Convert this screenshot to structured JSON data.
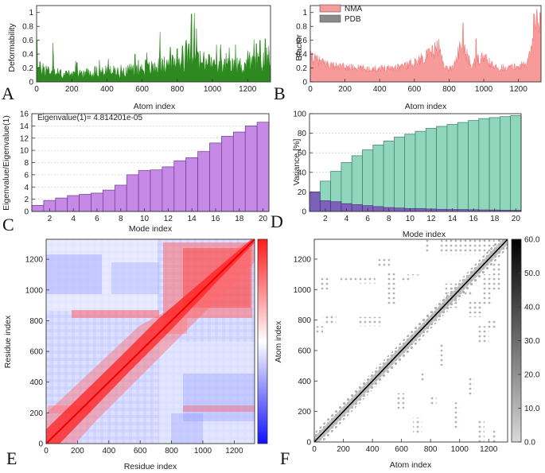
{
  "figure": {
    "panels": [
      "A",
      "B",
      "C",
      "D",
      "E",
      "F"
    ]
  },
  "colors": {
    "deform": "#2c8a1e",
    "nma": "#f79a9a",
    "pdb": "#8a8a8a",
    "eigen": "#c68ae6",
    "variance": "#8fd6bd",
    "variance_ind": "#7a55b8",
    "frame": "#333333",
    "grid": "#bdbdbd"
  },
  "chart_data": [
    {
      "id": "A",
      "type": "area",
      "title": "",
      "xlabel": "Atom index",
      "ylabel": "Deformability",
      "xlim": [
        0,
        1330
      ],
      "ylim": [
        0,
        1.1
      ],
      "xticks": [
        "0",
        "200",
        "400",
        "600",
        "800",
        "1000",
        "1200"
      ],
      "yticks": [
        "0",
        "0.2",
        "0.4",
        "0.6",
        "0.8",
        "1"
      ],
      "profile": [
        [
          0,
          0.2
        ],
        [
          40,
          0.22
        ],
        [
          100,
          0.15
        ],
        [
          160,
          0.12
        ],
        [
          220,
          0.13
        ],
        [
          300,
          0.15
        ],
        [
          380,
          0.16
        ],
        [
          460,
          0.17
        ],
        [
          540,
          0.18
        ],
        [
          620,
          0.2
        ],
        [
          700,
          0.24
        ],
        [
          760,
          0.28
        ],
        [
          820,
          0.3
        ],
        [
          860,
          0.42
        ],
        [
          880,
          0.55
        ],
        [
          900,
          0.35
        ],
        [
          960,
          0.3
        ],
        [
          1020,
          0.25
        ],
        [
          1100,
          0.24
        ],
        [
          1180,
          0.26
        ],
        [
          1240,
          0.3
        ],
        [
          1280,
          0.32
        ],
        [
          1300,
          0.3
        ],
        [
          1330,
          0.28
        ]
      ],
      "peaks": [
        [
          2,
          0.6
        ],
        [
          95,
          0.35
        ],
        [
          230,
          0.28
        ],
        [
          560,
          0.4
        ],
        [
          620,
          0.32
        ],
        [
          700,
          0.45
        ],
        [
          760,
          0.5
        ],
        [
          800,
          0.48
        ],
        [
          830,
          0.52
        ],
        [
          850,
          0.6
        ],
        [
          865,
          0.55
        ],
        [
          880,
          0.98
        ],
        [
          895,
          0.62
        ],
        [
          910,
          0.48
        ],
        [
          980,
          0.4
        ],
        [
          1070,
          0.33
        ],
        [
          1200,
          0.45
        ],
        [
          1250,
          0.55
        ],
        [
          1270,
          0.6
        ],
        [
          1300,
          0.62
        ],
        [
          1320,
          0.52
        ]
      ]
    },
    {
      "id": "B",
      "type": "area",
      "title": "",
      "xlabel": "Atom index",
      "ylabel": "Bfactor",
      "xlim": [
        0,
        1330
      ],
      "ylim": [
        0,
        1.1
      ],
      "xticks": [
        "0",
        "200",
        "400",
        "600",
        "800",
        "1000",
        "1200"
      ],
      "yticks": [
        "0",
        "0.2",
        "0.4",
        "0.6",
        "0.8",
        "1"
      ],
      "legend": [
        "NMA",
        "PDB"
      ],
      "legend_position": "top-left",
      "profile": [
        [
          0,
          0.35
        ],
        [
          60,
          0.28
        ],
        [
          150,
          0.22
        ],
        [
          250,
          0.2
        ],
        [
          350,
          0.18
        ],
        [
          450,
          0.2
        ],
        [
          550,
          0.23
        ],
        [
          620,
          0.3
        ],
        [
          680,
          0.38
        ],
        [
          720,
          0.45
        ],
        [
          740,
          0.5
        ],
        [
          760,
          0.3
        ],
        [
          790,
          0.18
        ],
        [
          820,
          0.2
        ],
        [
          860,
          0.45
        ],
        [
          880,
          0.55
        ],
        [
          900,
          0.38
        ],
        [
          930,
          0.22
        ],
        [
          960,
          0.3
        ],
        [
          1000,
          0.35
        ],
        [
          1060,
          0.2
        ],
        [
          1140,
          0.2
        ],
        [
          1200,
          0.22
        ],
        [
          1250,
          0.25
        ],
        [
          1280,
          0.6
        ],
        [
          1300,
          0.9
        ],
        [
          1320,
          0.7
        ],
        [
          1330,
          0.72
        ]
      ],
      "peaks": [
        [
          10,
          0.42
        ],
        [
          880,
          0.85
        ],
        [
          955,
          0.62
        ],
        [
          1010,
          0.38
        ],
        [
          1290,
          0.98
        ],
        [
          1312,
          0.85
        ],
        [
          1325,
          1.0
        ]
      ]
    },
    {
      "id": "C",
      "type": "bar",
      "title": "",
      "annotation": "Eigenvalue(1)= 4.814201e-05",
      "xlabel": "Mode index",
      "ylabel": "Eigenvalue/Eigenvalue(1)",
      "xlim": [
        0.5,
        20.5
      ],
      "ylim": [
        0,
        16
      ],
      "xticks": [
        "2",
        "4",
        "6",
        "8",
        "10",
        "12",
        "14",
        "16",
        "18",
        "20"
      ],
      "yticks": [
        "0",
        "2",
        "4",
        "6",
        "8",
        "10",
        "12",
        "14",
        "16"
      ],
      "categories": [
        1,
        2,
        3,
        4,
        5,
        6,
        7,
        8,
        9,
        10,
        11,
        12,
        13,
        14,
        15,
        16,
        17,
        18,
        19,
        20
      ],
      "values": [
        1.0,
        1.8,
        2.2,
        2.6,
        2.8,
        3.0,
        3.5,
        4.3,
        6.0,
        6.7,
        6.8,
        7.3,
        8.3,
        8.8,
        9.8,
        11.2,
        12.3,
        13.0,
        14.0,
        14.6
      ]
    },
    {
      "id": "D",
      "type": "bar",
      "title": "",
      "xlabel": "Mode index",
      "ylabel": "Variance [%]",
      "xlim": [
        0.5,
        20.5
      ],
      "ylim": [
        0,
        100
      ],
      "xticks": [
        "2",
        "4",
        "6",
        "8",
        "10",
        "12",
        "14",
        "16",
        "18",
        "20"
      ],
      "yticks": [
        "0",
        "20",
        "40",
        "60",
        "80",
        "100"
      ],
      "categories": [
        1,
        2,
        3,
        4,
        5,
        6,
        7,
        8,
        9,
        10,
        11,
        12,
        13,
        14,
        15,
        16,
        17,
        18,
        19,
        20
      ],
      "series": [
        {
          "name": "cumulative",
          "values": [
            20,
            31,
            41,
            50,
            57,
            63,
            68,
            72,
            76,
            79,
            82,
            85,
            87,
            89,
            91,
            93,
            95,
            96,
            97,
            98
          ]
        },
        {
          "name": "individual",
          "values": [
            20,
            11,
            10,
            8,
            7,
            6,
            5,
            4,
            3.5,
            3,
            3,
            2.5,
            2.2,
            2,
            2,
            1.8,
            1.6,
            1.5,
            1.3,
            1.2
          ]
        }
      ]
    },
    {
      "id": "E",
      "type": "heatmap",
      "title": "",
      "xlabel": "Residue index",
      "ylabel": "Residue index",
      "xlim": [
        0,
        1330
      ],
      "ylim": [
        0,
        1330
      ],
      "xticks": [
        "0",
        "200",
        "400",
        "600",
        "800",
        "1000",
        "1200"
      ],
      "yticks": [
        "0",
        "200",
        "400",
        "600",
        "800",
        "1000",
        "1200"
      ],
      "colorbar": "blue-white-red",
      "colorbar_ticks": []
    },
    {
      "id": "F",
      "type": "heatmap",
      "title": "",
      "xlabel": "Atom index",
      "ylabel": "Atom index",
      "xlim": [
        0,
        1330
      ],
      "ylim": [
        0,
        1330
      ],
      "xticks": [
        "0",
        "200",
        "400",
        "600",
        "800",
        "1000",
        "1200"
      ],
      "yticks": [
        "0",
        "200",
        "400",
        "600",
        "800",
        "1000",
        "1200"
      ],
      "colorbar": "light-gray-black",
      "colorbar_ticks": [
        "0.0",
        "10.0",
        "20.0",
        "30.0",
        "40.0",
        "50.0",
        "60.0"
      ],
      "diagonal_band_half_width": 60,
      "blocks": [
        [
          870,
          1100,
          1230,
          1330
        ],
        [
          1100,
          1240,
          1230,
          1330
        ],
        [
          30,
          100,
          1000,
          1080
        ],
        [
          60,
          150,
          780,
          830
        ],
        [
          180,
          300,
          1050,
          1080
        ],
        [
          300,
          420,
          1040,
          1080
        ],
        [
          300,
          460,
          760,
          820
        ],
        [
          430,
          520,
          1140,
          1200
        ],
        [
          500,
          560,
          900,
          1120
        ],
        [
          600,
          660,
          1060,
          1080
        ],
        [
          640,
          720,
          1080,
          1100
        ],
        [
          900,
          990,
          880,
          1040
        ],
        [
          900,
          1080,
          960,
          1000
        ],
        [
          1050,
          1150,
          820,
          920
        ],
        [
          1120,
          1200,
          640,
          760
        ],
        [
          1150,
          1230,
          900,
          1100
        ],
        [
          1180,
          1260,
          740,
          800
        ],
        [
          1220,
          1280,
          1000,
          1180
        ],
        [
          0,
          60,
          700,
          760
        ],
        [
          760,
          800,
          1240,
          1330
        ],
        [
          850,
          890,
          500,
          640
        ],
        [
          790,
          840,
          230,
          300
        ],
        [
          720,
          760,
          400,
          470
        ],
        [
          1050,
          1100,
          300,
          420
        ],
        [
          1120,
          1170,
          0,
          140
        ],
        [
          1230,
          1260,
          0,
          80
        ],
        [
          950,
          1000,
          80,
          260
        ],
        [
          680,
          740,
          60,
          160
        ],
        [
          560,
          620,
          200,
          320
        ]
      ]
    }
  ]
}
